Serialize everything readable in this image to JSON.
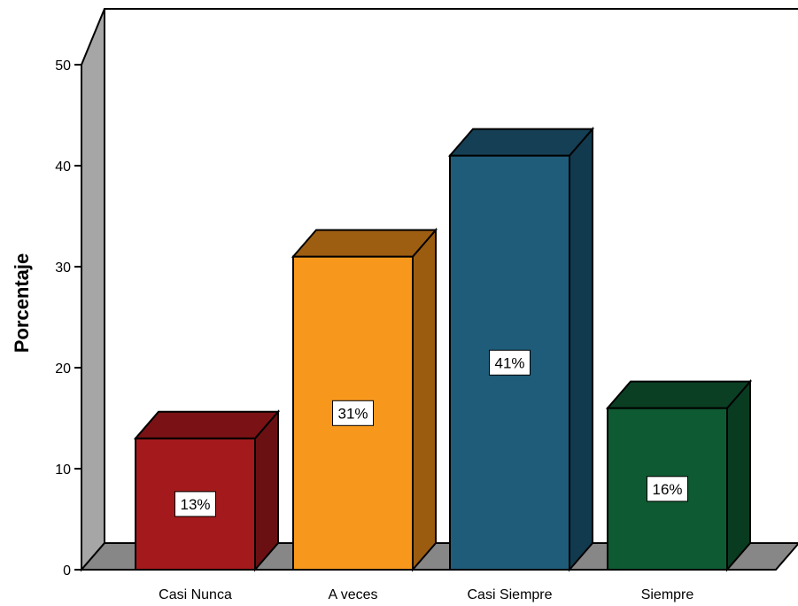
{
  "chart_data": {
    "type": "bar",
    "title": "",
    "xlabel": "",
    "ylabel": "Porcentaje",
    "ylim": [
      0,
      50
    ],
    "yticks": [
      0,
      10,
      20,
      30,
      40,
      50
    ],
    "grid": false,
    "categories": [
      "Casi Nunca",
      "A veces",
      "Casi Siempre",
      "Siempre"
    ],
    "values": [
      13,
      31,
      41,
      16
    ],
    "data_labels": [
      "13%",
      "31%",
      "41%",
      "16%"
    ],
    "colors": [
      "#A3191C",
      "#F7981D",
      "#1E5C79",
      "#0E5A32"
    ],
    "side_colors": [
      "#6A1013",
      "#9B5C10",
      "#123A4E",
      "#093B20"
    ],
    "top_colors": [
      "#7A1215",
      "#9E5E12",
      "#153F55",
      "#0A3F24"
    ]
  }
}
